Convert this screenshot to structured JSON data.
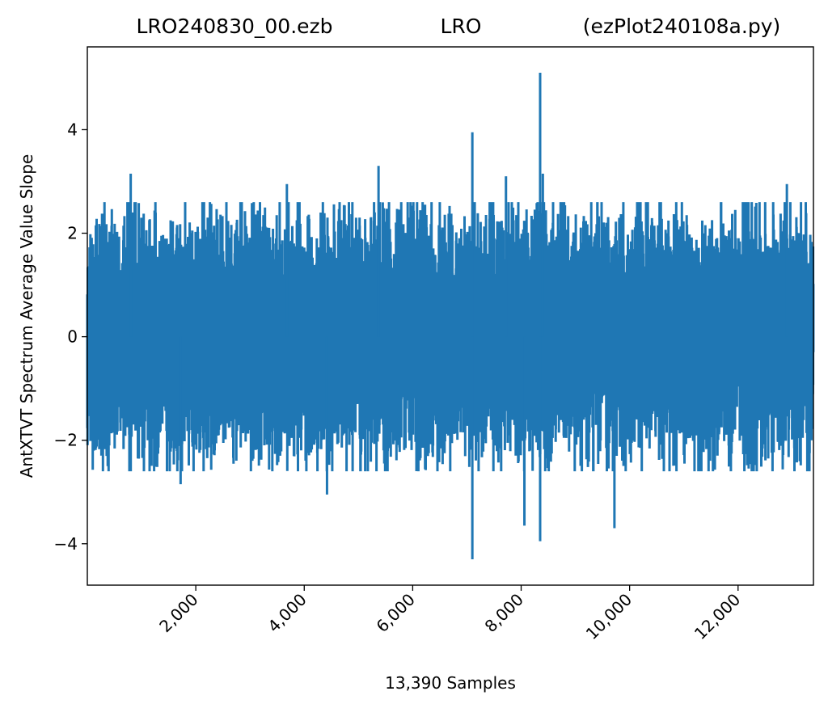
{
  "title": {
    "left": "LRO240830_00.ezb",
    "center": "LRO",
    "right": "(ezPlot240108a.py)"
  },
  "chart_data": {
    "type": "line",
    "xlabel": "13,390 Samples",
    "ylabel": "AntXTVT Spectrum Average Value Slope",
    "xlim": [
      0,
      13390
    ],
    "ylim": [
      -4.8,
      5.6
    ],
    "x_ticks": [
      2000,
      4000,
      6000,
      8000,
      10000,
      12000
    ],
    "x_tick_labels": [
      "2,000",
      "4,000",
      "6,000",
      "8,000",
      "10,000",
      "12,000"
    ],
    "y_ticks": [
      -4,
      -2,
      0,
      2,
      4
    ],
    "y_tick_labels": [
      "−4",
      "−2",
      "0",
      "2",
      "4"
    ],
    "grid": false,
    "line_color": "#1f77b4",
    "sample_count": 13390,
    "noise_band_typical": [
      -1.6,
      1.6
    ],
    "series": [
      {
        "values_summary": "dense noise centered on 0",
        "peaks": [
          {
            "x": 800,
            "y": 3.15
          },
          {
            "x": 1720,
            "y": -2.85
          },
          {
            "x": 3680,
            "y": 2.95
          },
          {
            "x": 4420,
            "y": -3.05
          },
          {
            "x": 5370,
            "y": 3.3
          },
          {
            "x": 7100,
            "y": 3.95
          },
          {
            "x": 7100,
            "y": -4.3
          },
          {
            "x": 7720,
            "y": 3.1
          },
          {
            "x": 8060,
            "y": -3.65
          },
          {
            "x": 8350,
            "y": 5.1
          },
          {
            "x": 8350,
            "y": -3.95
          },
          {
            "x": 8400,
            "y": 3.15
          },
          {
            "x": 9720,
            "y": -3.7
          },
          {
            "x": 12900,
            "y": 2.95
          }
        ]
      }
    ]
  }
}
